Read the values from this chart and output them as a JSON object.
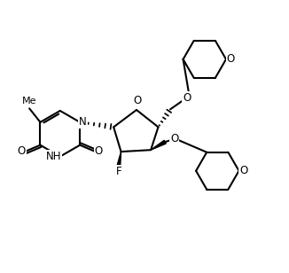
{
  "bg_color": "#ffffff",
  "line_color": "#000000",
  "line_width": 1.5,
  "font_size": 8.5,
  "figsize": [
    3.26,
    3.08
  ],
  "dpi": 100,
  "xlim": [
    0,
    10
  ],
  "ylim": [
    0,
    9.5
  ]
}
